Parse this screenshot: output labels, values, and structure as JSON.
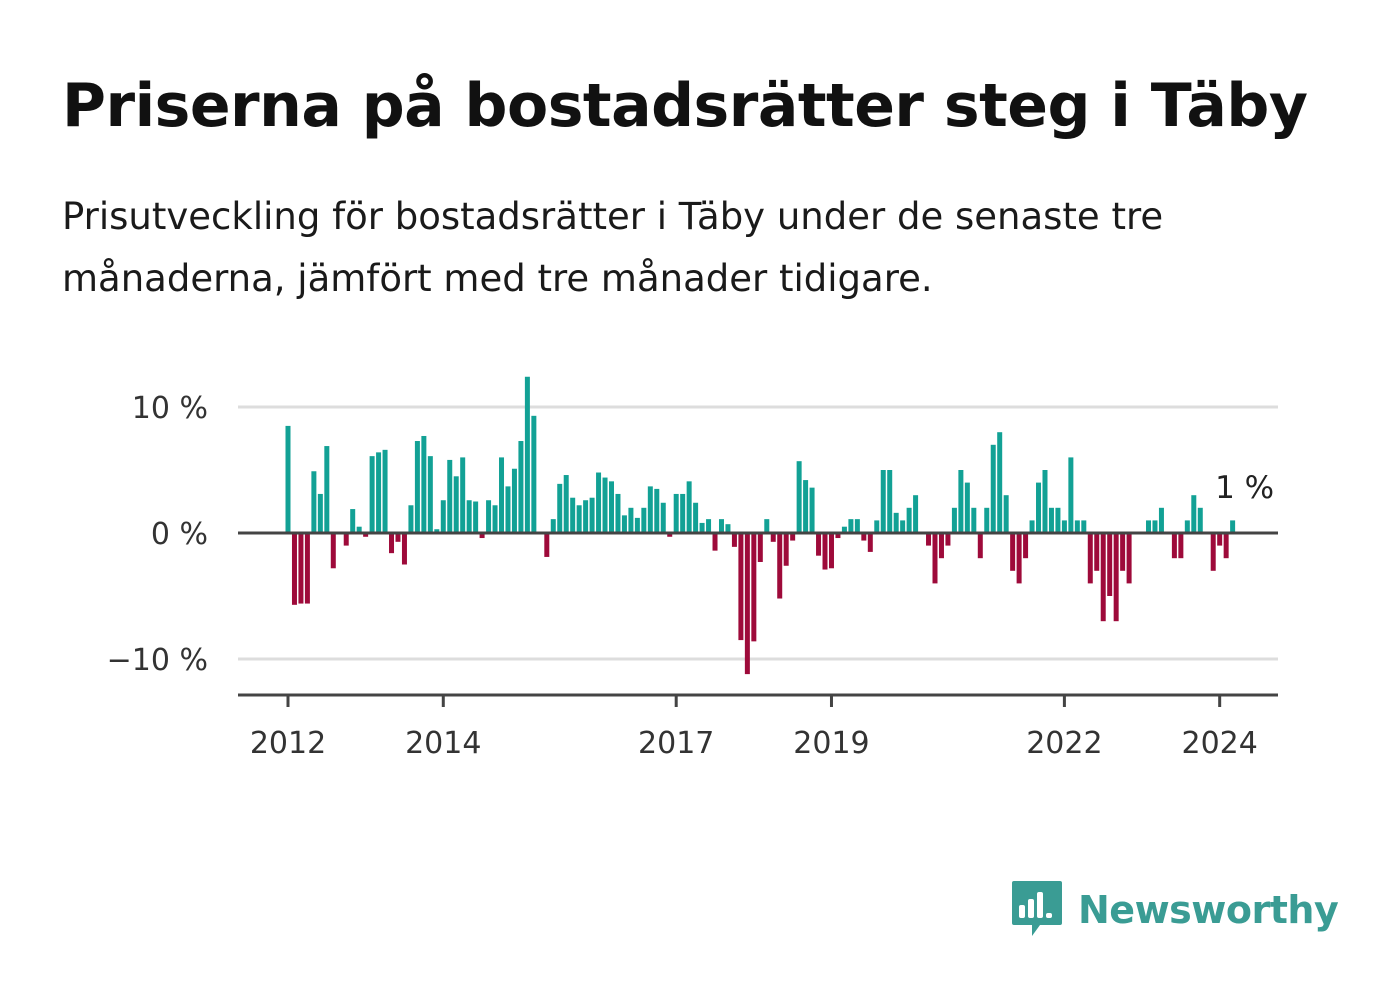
{
  "title": "Priserna på bostadsrätter steg i Täby",
  "subtitle": "Prisutveckling för bostadsrätter i Täby under de senaste tre månaderna, jämfört med tre månader tidigare.",
  "brand": {
    "name": "Newsworthy",
    "icon": "newsworthy-logo-icon",
    "color": "#3a9c94"
  },
  "colors": {
    "positive": "#12a195",
    "negative": "#9e0a3a",
    "grid": "#dddddd",
    "axis": "#444444"
  },
  "chart_data": {
    "type": "bar",
    "title": "Priserna på bostadsrätter steg i Täby",
    "xlabel": "",
    "ylabel": "",
    "grid": true,
    "ylim": [
      -12.8,
      12.8
    ],
    "y_ticks": [
      {
        "value": 10,
        "label": "10 %"
      },
      {
        "value": 0,
        "label": "0 %"
      },
      {
        "value": -10,
        "label": "−10 %"
      }
    ],
    "x_ticks": [
      {
        "label": "2012",
        "index": 0
      },
      {
        "label": "2014",
        "index": 24
      },
      {
        "label": "2017",
        "index": 60
      },
      {
        "label": "2019",
        "index": 84
      },
      {
        "label": "2022",
        "index": 120
      },
      {
        "label": "2024",
        "index": 144
      }
    ],
    "period": {
      "start": "2012-01",
      "end": "2024-03",
      "frequency": "monthly"
    },
    "unit": "%",
    "values": [
      8.5,
      -5.7,
      -5.6,
      -5.6,
      4.9,
      3.1,
      6.9,
      -2.8,
      0,
      -1.0,
      1.9,
      0.5,
      -0.3,
      6.1,
      6.4,
      6.6,
      -1.6,
      -0.7,
      -2.5,
      2.2,
      7.3,
      7.7,
      6.1,
      0.3,
      2.6,
      5.8,
      4.5,
      6.0,
      2.6,
      2.5,
      -0.4,
      2.6,
      2.2,
      6.0,
      3.7,
      5.1,
      7.3,
      12.4,
      9.3,
      0,
      -1.9,
      1.1,
      3.9,
      4.6,
      2.8,
      2.2,
      2.6,
      2.8,
      4.8,
      4.4,
      4.1,
      3.1,
      1.4,
      2.0,
      1.2,
      2.0,
      3.7,
      3.5,
      2.4,
      -0.3,
      3.1,
      3.1,
      4.1,
      2.4,
      0.8,
      1.1,
      -1.4,
      1.1,
      0.7,
      -1.1,
      -8.5,
      -11.2,
      -8.6,
      -2.3,
      1.1,
      -0.7,
      -5.2,
      -2.6,
      -0.6,
      5.7,
      4.2,
      3.6,
      -1.8,
      -2.9,
      -2.8,
      -0.4,
      0.5,
      1.1,
      1.1,
      -0.6,
      -1.5,
      1.0,
      5.0,
      5.0,
      1.6,
      1.0,
      2.0,
      3.0,
      0,
      -1.0,
      -4.0,
      -2.0,
      -1.0,
      2.0,
      5.0,
      4.0,
      2.0,
      -2.0,
      2.0,
      7.0,
      8.0,
      3.0,
      -3.0,
      -4.0,
      -2.0,
      1.0,
      4.0,
      5.0,
      2.0,
      2.0,
      1.0,
      6.0,
      1.0,
      1.0,
      -4.0,
      -3.0,
      -7.0,
      -5.0,
      -7.0,
      -3.0,
      -4.0,
      0,
      0,
      1.0,
      1.0,
      2.0,
      0,
      -2.0,
      -2.0,
      1.0,
      3.0,
      2.0,
      0,
      -3.0,
      -1.0,
      -2.0,
      1.0
    ],
    "annotations": [
      {
        "index": 146,
        "text": "1 %"
      }
    ]
  }
}
